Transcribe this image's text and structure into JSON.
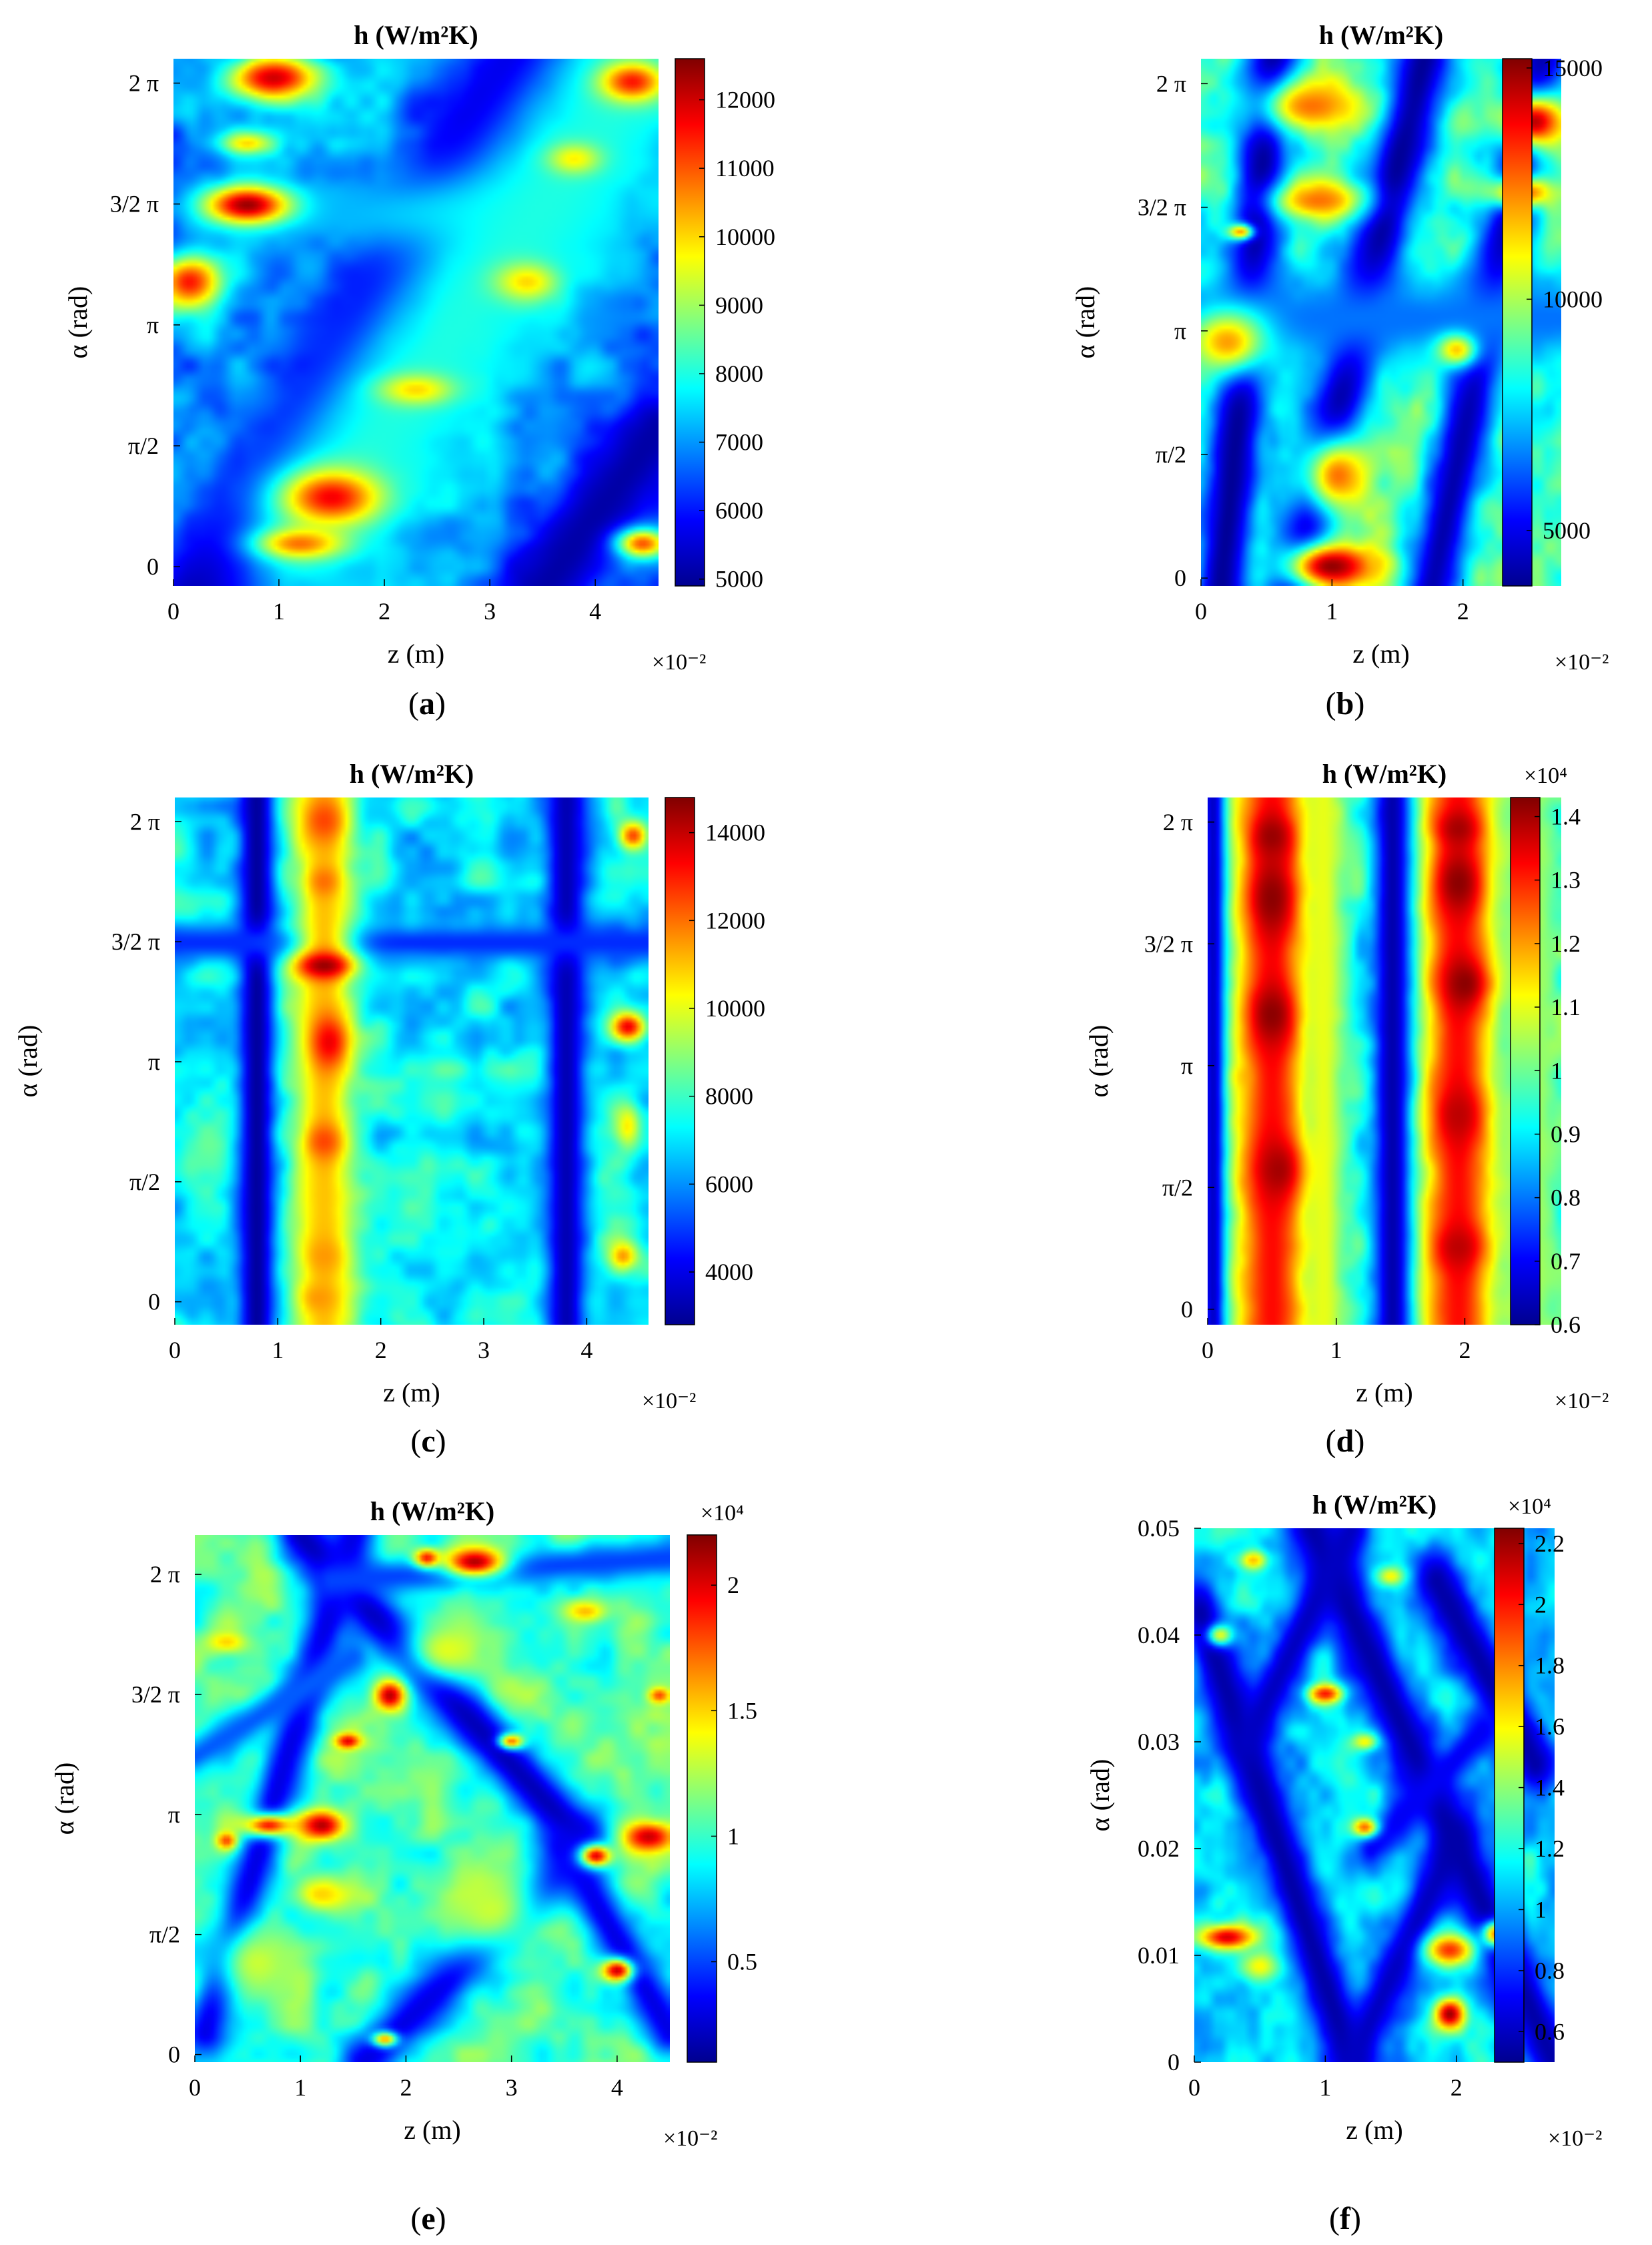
{
  "colorscale": [
    "#00008f",
    "#0000ff",
    "#0080ff",
    "#00ffff",
    "#80ff80",
    "#ffff00",
    "#ff8000",
    "#ff0000",
    "#800000"
  ],
  "chart_data": [
    {
      "type": "heatmap",
      "panel": "a",
      "title": "h (W/m²K)",
      "xlabel": "z (m)",
      "ylabel": "α (rad)",
      "xlim": [
        0,
        4.6
      ],
      "x_exponent": "×10⁻²",
      "ylim": [
        -0.25,
        6.6
      ],
      "xticks": [
        0,
        1,
        2,
        3,
        4
      ],
      "xtick_labels": [
        "0",
        "1",
        "2",
        "3",
        "4"
      ],
      "yticks": [
        0,
        1.5708,
        3.1416,
        4.7124,
        6.2832
      ],
      "ytick_labels": [
        "0",
        "π/2",
        "π",
        "3/2 π",
        "2 π"
      ],
      "clim": [
        4900,
        12600
      ],
      "cticks": [
        5000,
        6000,
        7000,
        8000,
        9000,
        10000,
        11000,
        12000
      ],
      "ctick_labels": [
        "5000",
        "6000",
        "7000",
        "8000",
        "9000",
        "10000",
        "11000",
        "12000"
      ],
      "cexponent": "",
      "background": 6900,
      "bands": [
        {
          "x0": 0.3,
          "y0": -0.3,
          "x1": 3.3,
          "y1": 6.6,
          "w": 0.35,
          "v": 5000
        },
        {
          "x0": 3.5,
          "y0": -0.3,
          "x1": 4.6,
          "y1": 1.8,
          "w": 0.3,
          "v": 5100
        },
        {
          "x0": 0.4,
          "y0": 4.6,
          "x1": 4.0,
          "y1": 4.6,
          "w": 0.25,
          "v": 7200
        },
        {
          "x0": 1.4,
          "y0": 0.6,
          "x1": 4.3,
          "y1": 6.2,
          "w": 0.6,
          "v": 8000
        }
      ],
      "blobs": [
        {
          "x": 0.95,
          "y": 6.35,
          "rx": 0.45,
          "ry": 0.3,
          "v": 12000
        },
        {
          "x": 0.7,
          "y": 4.7,
          "rx": 0.4,
          "ry": 0.25,
          "v": 12400
        },
        {
          "x": 0.15,
          "y": 3.7,
          "rx": 0.3,
          "ry": 0.35,
          "v": 11500
        },
        {
          "x": 0.7,
          "y": 5.5,
          "rx": 0.25,
          "ry": 0.15,
          "v": 10000
        },
        {
          "x": 1.5,
          "y": 0.9,
          "rx": 0.45,
          "ry": 0.35,
          "v": 11700
        },
        {
          "x": 1.2,
          "y": 0.3,
          "rx": 0.4,
          "ry": 0.2,
          "v": 10800
        },
        {
          "x": 2.3,
          "y": 2.3,
          "rx": 0.35,
          "ry": 0.2,
          "v": 10000
        },
        {
          "x": 3.35,
          "y": 3.7,
          "rx": 0.3,
          "ry": 0.25,
          "v": 10000
        },
        {
          "x": 4.35,
          "y": 6.3,
          "rx": 0.3,
          "ry": 0.25,
          "v": 11500
        },
        {
          "x": 3.8,
          "y": 5.3,
          "rx": 0.25,
          "ry": 0.2,
          "v": 9800
        },
        {
          "x": 4.45,
          "y": 0.3,
          "rx": 0.25,
          "ry": 0.2,
          "v": 11000
        }
      ]
    },
    {
      "type": "heatmap",
      "panel": "b",
      "title": "h (W/m²K)",
      "xlabel": "z (m)",
      "ylabel": "α (rad)",
      "xlim": [
        0,
        2.75
      ],
      "x_exponent": "×10⁻²",
      "ylim": [
        -0.1,
        6.6
      ],
      "xticks": [
        0,
        1,
        2
      ],
      "xtick_labels": [
        "0",
        "1",
        "2"
      ],
      "yticks": [
        0,
        1.5708,
        3.1416,
        4.7124,
        6.2832
      ],
      "ytick_labels": [
        "0",
        "π/2",
        "π",
        "3/2 π",
        "2 π"
      ],
      "clim": [
        3800,
        15200
      ],
      "cticks": [
        5000,
        10000,
        15000
      ],
      "ctick_labels": [
        "5000",
        "10000",
        "15000"
      ],
      "cexponent": "",
      "background": 8900,
      "bands": [
        {
          "x0": 0.15,
          "y0": -0.2,
          "x1": 0.55,
          "y1": 6.6,
          "w": 0.15,
          "v": 3900
        },
        {
          "x0": 0.7,
          "y0": -0.2,
          "x1": 1.7,
          "y1": 6.6,
          "w": 0.16,
          "v": 3900
        },
        {
          "x0": 1.75,
          "y0": -0.2,
          "x1": 2.6,
          "y1": 6.6,
          "w": 0.14,
          "v": 4200
        },
        {
          "x0": 0.0,
          "y0": 3.3,
          "x1": 2.75,
          "y1": 3.3,
          "w": 0.18,
          "v": 6500
        }
      ],
      "blobs": [
        {
          "x": 1.0,
          "y": 0.15,
          "rx": 0.35,
          "ry": 0.3,
          "v": 15000
        },
        {
          "x": 1.05,
          "y": 1.3,
          "rx": 0.28,
          "ry": 0.5,
          "v": 12500
        },
        {
          "x": 0.9,
          "y": 4.8,
          "rx": 0.35,
          "ry": 0.25,
          "v": 12500
        },
        {
          "x": 0.85,
          "y": 6.0,
          "rx": 0.4,
          "ry": 0.35,
          "v": 12500
        },
        {
          "x": 2.55,
          "y": 5.8,
          "rx": 0.25,
          "ry": 0.35,
          "v": 14500
        },
        {
          "x": 2.45,
          "y": 4.9,
          "rx": 0.25,
          "ry": 0.2,
          "v": 13000
        },
        {
          "x": 0.2,
          "y": 3.0,
          "rx": 0.3,
          "ry": 0.4,
          "v": 12000
        },
        {
          "x": 1.95,
          "y": 2.9,
          "rx": 0.15,
          "ry": 0.2,
          "v": 11500
        },
        {
          "x": 0.3,
          "y": 4.4,
          "rx": 0.1,
          "ry": 0.1,
          "v": 12000
        }
      ]
    },
    {
      "type": "heatmap",
      "panel": "c",
      "title": "h (W/m²K)",
      "xlabel": "z (m)",
      "ylabel": "α (rad)",
      "xlim": [
        0,
        4.6
      ],
      "x_exponent": "×10⁻²",
      "ylim": [
        -0.3,
        6.6
      ],
      "xticks": [
        0,
        1,
        2,
        3,
        4
      ],
      "xtick_labels": [
        "0",
        "1",
        "2",
        "3",
        "4"
      ],
      "yticks": [
        0,
        1.5708,
        3.1416,
        4.7124,
        6.2832
      ],
      "ytick_labels": [
        "0",
        "π/2",
        "π",
        "3/2 π",
        "2 π"
      ],
      "clim": [
        2800,
        14800
      ],
      "cticks": [
        4000,
        6000,
        8000,
        10000,
        12000,
        14000
      ],
      "ctick_labels": [
        "4000",
        "6000",
        "8000",
        "10000",
        "12000",
        "14000"
      ],
      "cexponent": "",
      "background": 7200,
      "bands": [
        {
          "x0": 0.8,
          "y0": -0.4,
          "x1": 0.8,
          "y1": 6.7,
          "w": 0.13,
          "v": 2900
        },
        {
          "x0": 3.8,
          "y0": -0.4,
          "x1": 3.8,
          "y1": 6.7,
          "w": 0.14,
          "v": 3300
        },
        {
          "x0": 0.0,
          "y0": 4.7,
          "x1": 4.6,
          "y1": 4.7,
          "w": 0.12,
          "v": 4800
        },
        {
          "x0": 1.45,
          "y0": -0.4,
          "x1": 1.45,
          "y1": 6.7,
          "w": 0.22,
          "v": 11000
        }
      ],
      "blobs": [
        {
          "x": 1.45,
          "y": 4.4,
          "rx": 0.28,
          "ry": 0.18,
          "v": 14500
        },
        {
          "x": 1.5,
          "y": 3.4,
          "rx": 0.18,
          "ry": 0.35,
          "v": 13500
        },
        {
          "x": 1.45,
          "y": 6.3,
          "rx": 0.2,
          "ry": 0.3,
          "v": 12500
        },
        {
          "x": 1.45,
          "y": 5.5,
          "rx": 0.15,
          "ry": 0.2,
          "v": 12000
        },
        {
          "x": 1.45,
          "y": 2.1,
          "rx": 0.18,
          "ry": 0.25,
          "v": 12500
        },
        {
          "x": 1.45,
          "y": 0.6,
          "rx": 0.18,
          "ry": 0.25,
          "v": 11500
        },
        {
          "x": 1.4,
          "y": 0.05,
          "rx": 0.18,
          "ry": 0.2,
          "v": 11500
        },
        {
          "x": 4.4,
          "y": 3.6,
          "rx": 0.18,
          "ry": 0.2,
          "v": 13500
        },
        {
          "x": 4.45,
          "y": 6.1,
          "rx": 0.15,
          "ry": 0.2,
          "v": 12500
        },
        {
          "x": 4.35,
          "y": 0.6,
          "rx": 0.15,
          "ry": 0.2,
          "v": 11500
        },
        {
          "x": 4.4,
          "y": 2.3,
          "rx": 0.12,
          "ry": 0.3,
          "v": 10500
        }
      ]
    },
    {
      "type": "heatmap",
      "panel": "d",
      "title": "h (W/m²K)",
      "xlabel": "z (m)",
      "ylabel": "α (rad)",
      "xlim": [
        0,
        2.75
      ],
      "x_exponent": "×10⁻²",
      "ylim": [
        -0.2,
        6.6
      ],
      "xticks": [
        0,
        1,
        2
      ],
      "xtick_labels": [
        "0",
        "1",
        "2"
      ],
      "yticks": [
        0,
        1.5708,
        3.1416,
        4.7124,
        6.2832
      ],
      "ytick_labels": [
        "0",
        "π/2",
        "π",
        "3/2 π",
        "2 π"
      ],
      "clim": [
        0.6,
        1.43
      ],
      "cticks": [
        0.6,
        0.7,
        0.8,
        0.9,
        1,
        1.1,
        1.2,
        1.3,
        1.4
      ],
      "ctick_labels": [
        "0.6",
        "0.7",
        "0.8",
        "0.9",
        "1",
        "1.1",
        "1.2",
        "1.3",
        "1.4"
      ],
      "cexponent": "×10⁴",
      "background": 0.95,
      "bands": [
        {
          "x0": 0.05,
          "y0": -0.3,
          "x1": 0.05,
          "y1": 6.7,
          "w": 0.07,
          "v": 0.6
        },
        {
          "x0": 1.45,
          "y0": -0.3,
          "x1": 1.45,
          "y1": 6.7,
          "w": 0.12,
          "v": 0.6
        },
        {
          "x0": 0.5,
          "y0": -0.3,
          "x1": 0.5,
          "y1": 6.7,
          "w": 0.2,
          "v": 1.32
        },
        {
          "x0": 1.95,
          "y0": -0.3,
          "x1": 1.95,
          "y1": 6.7,
          "w": 0.2,
          "v": 1.32
        },
        {
          "x0": 0.9,
          "y0": -0.3,
          "x1": 0.9,
          "y1": 6.7,
          "w": 0.1,
          "v": 1.1
        },
        {
          "x0": 2.5,
          "y0": -0.3,
          "x1": 2.5,
          "y1": 6.7,
          "w": 0.15,
          "v": 1.05
        }
      ],
      "blobs": [
        {
          "x": 0.5,
          "y": 5.3,
          "rx": 0.18,
          "ry": 0.5,
          "v": 1.42
        },
        {
          "x": 0.5,
          "y": 3.8,
          "rx": 0.18,
          "ry": 0.4,
          "v": 1.42
        },
        {
          "x": 0.55,
          "y": 1.8,
          "rx": 0.18,
          "ry": 0.4,
          "v": 1.4
        },
        {
          "x": 0.5,
          "y": 6.1,
          "rx": 0.16,
          "ry": 0.3,
          "v": 1.41
        },
        {
          "x": 1.95,
          "y": 5.5,
          "rx": 0.18,
          "ry": 0.4,
          "v": 1.42
        },
        {
          "x": 2.0,
          "y": 4.2,
          "rx": 0.18,
          "ry": 0.35,
          "v": 1.42
        },
        {
          "x": 1.95,
          "y": 2.5,
          "rx": 0.18,
          "ry": 0.4,
          "v": 1.38
        },
        {
          "x": 1.95,
          "y": 0.8,
          "rx": 0.18,
          "ry": 0.3,
          "v": 1.38
        },
        {
          "x": 1.95,
          "y": 6.2,
          "rx": 0.16,
          "ry": 0.25,
          "v": 1.4
        }
      ]
    },
    {
      "type": "heatmap",
      "panel": "e",
      "title": "h (W/m²K)",
      "xlabel": "z (m)",
      "ylabel": "α (rad)",
      "xlim": [
        0,
        4.5
      ],
      "x_exponent": "×10⁻²",
      "ylim": [
        -0.1,
        6.8
      ],
      "xticks": [
        0,
        1,
        2,
        3,
        4
      ],
      "xtick_labels": [
        "0",
        "1",
        "2",
        "3",
        "4"
      ],
      "yticks": [
        0,
        1.5708,
        3.1416,
        4.7124,
        6.2832
      ],
      "ytick_labels": [
        "0",
        "π/2",
        "π",
        "3/2 π",
        "2 π"
      ],
      "clim": [
        0.1,
        2.2
      ],
      "cticks": [
        0.5,
        1,
        1.5,
        2
      ],
      "ctick_labels": [
        "0.5",
        "1",
        "1.5",
        "2"
      ],
      "cexponent": "×10⁴",
      "background": 1.05,
      "bands": [
        {
          "x0": 1.0,
          "y0": 6.8,
          "x1": 3.6,
          "y1": 2.9,
          "w": 0.17,
          "v": 0.2
        },
        {
          "x0": 0.1,
          "y0": 0.3,
          "x1": 1.5,
          "y1": 6.8,
          "w": 0.15,
          "v": 0.3
        },
        {
          "x0": 1.6,
          "y0": -0.1,
          "x1": 3.7,
          "y1": 2.7,
          "w": 0.17,
          "v": 0.3
        },
        {
          "x0": 3.5,
          "y0": 2.7,
          "x1": 4.5,
          "y1": 0.3,
          "w": 0.15,
          "v": 0.3
        },
        {
          "x0": 1.3,
          "y0": 6.2,
          "x1": 4.5,
          "y1": 6.5,
          "w": 0.12,
          "v": 0.5
        },
        {
          "x0": 0.0,
          "y0": 3.9,
          "x1": 1.5,
          "y1": 5.2,
          "w": 0.12,
          "v": 0.55
        }
      ],
      "blobs": [
        {
          "x": 2.65,
          "y": 6.45,
          "rx": 0.3,
          "ry": 0.2,
          "v": 2.1
        },
        {
          "x": 2.2,
          "y": 6.5,
          "rx": 0.12,
          "ry": 0.12,
          "v": 1.9
        },
        {
          "x": 1.85,
          "y": 4.7,
          "rx": 0.15,
          "ry": 0.2,
          "v": 2.1
        },
        {
          "x": 1.45,
          "y": 4.1,
          "rx": 0.12,
          "ry": 0.1,
          "v": 2.0
        },
        {
          "x": 1.2,
          "y": 3.0,
          "rx": 0.22,
          "ry": 0.2,
          "v": 2.1
        },
        {
          "x": 0.7,
          "y": 3.0,
          "rx": 0.25,
          "ry": 0.15,
          "v": 1.9
        },
        {
          "x": 0.3,
          "y": 2.8,
          "rx": 0.1,
          "ry": 0.12,
          "v": 1.8
        },
        {
          "x": 4.3,
          "y": 2.85,
          "rx": 0.25,
          "ry": 0.2,
          "v": 2.05
        },
        {
          "x": 3.8,
          "y": 2.6,
          "rx": 0.15,
          "ry": 0.15,
          "v": 2.0
        },
        {
          "x": 4.0,
          "y": 1.1,
          "rx": 0.15,
          "ry": 0.15,
          "v": 2.05
        },
        {
          "x": 3.0,
          "y": 4.1,
          "rx": 0.12,
          "ry": 0.1,
          "v": 1.7
        },
        {
          "x": 4.4,
          "y": 4.7,
          "rx": 0.1,
          "ry": 0.1,
          "v": 1.8
        },
        {
          "x": 1.8,
          "y": 0.2,
          "rx": 0.12,
          "ry": 0.1,
          "v": 1.6
        },
        {
          "x": 2.8,
          "y": 1.9,
          "rx": 0.5,
          "ry": 0.6,
          "v": 1.3
        },
        {
          "x": 2.4,
          "y": 5.3,
          "rx": 0.4,
          "ry": 0.4,
          "v": 1.35
        },
        {
          "x": 0.6,
          "y": 1.2,
          "rx": 0.4,
          "ry": 0.5,
          "v": 1.3
        },
        {
          "x": 1.2,
          "y": 2.1,
          "rx": 0.25,
          "ry": 0.2,
          "v": 1.5
        },
        {
          "x": 3.7,
          "y": 5.8,
          "rx": 0.2,
          "ry": 0.15,
          "v": 1.55
        },
        {
          "x": 0.3,
          "y": 5.4,
          "rx": 0.2,
          "ry": 0.15,
          "v": 1.5
        }
      ]
    },
    {
      "type": "heatmap",
      "panel": "f",
      "title": "h (W/m²K)",
      "xlabel": "z (m)",
      "ylabel": "α (rad)",
      "xlim": [
        0,
        2.75
      ],
      "x_exponent": "×10⁻²",
      "ylim": [
        0,
        0.05
      ],
      "xticks": [
        0,
        1,
        2
      ],
      "xtick_labels": [
        "0",
        "1",
        "2"
      ],
      "yticks": [
        0,
        0.01,
        0.02,
        0.03,
        0.04,
        0.05
      ],
      "ytick_labels": [
        "0",
        "0.01",
        "0.02",
        "0.03",
        "0.04",
        "0.05"
      ],
      "clim": [
        0.5,
        2.25
      ],
      "cticks": [
        0.6,
        0.8,
        1,
        1.2,
        1.4,
        1.6,
        1.8,
        2,
        2.2
      ],
      "ctick_labels": [
        "0.6",
        "0.8",
        "1",
        "1.2",
        "1.4",
        "1.6",
        "1.8",
        "2",
        "2.2"
      ],
      "cexponent": "×10⁴",
      "background": 1.1,
      "bands": [
        {
          "x0": 0.05,
          "y0": 0.042,
          "x1": 1.2,
          "y1": 0.0,
          "w": 0.12,
          "v": 0.55
        },
        {
          "x0": 1.2,
          "y0": 0.0,
          "x1": 2.0,
          "y1": 0.021,
          "w": 0.1,
          "v": 0.6
        },
        {
          "x0": 0.9,
          "y0": 0.05,
          "x1": 2.75,
          "y1": 0.0,
          "w": 0.13,
          "v": 0.55
        },
        {
          "x0": 0.4,
          "y0": 0.03,
          "x1": 1.2,
          "y1": 0.05,
          "w": 0.1,
          "v": 0.6
        },
        {
          "x0": 1.85,
          "y0": 0.045,
          "x1": 2.6,
          "y1": 0.028,
          "w": 0.12,
          "v": 0.55
        },
        {
          "x0": 1.35,
          "y0": 0.02,
          "x1": 2.2,
          "y1": 0.031,
          "w": 0.08,
          "v": 0.7
        }
      ],
      "blobs": [
        {
          "x": 0.25,
          "y": 0.0117,
          "rx": 0.22,
          "ry": 0.0012,
          "v": 2.1
        },
        {
          "x": 1.95,
          "y": 0.0045,
          "rx": 0.12,
          "ry": 0.0015,
          "v": 2.2
        },
        {
          "x": 1.95,
          "y": 0.0105,
          "rx": 0.18,
          "ry": 0.0015,
          "v": 1.95
        },
        {
          "x": 2.3,
          "y": 0.012,
          "rx": 0.1,
          "ry": 0.0012,
          "v": 1.8
        },
        {
          "x": 1.0,
          "y": 0.0345,
          "rx": 0.13,
          "ry": 0.0009,
          "v": 2.0
        },
        {
          "x": 1.3,
          "y": 0.022,
          "rx": 0.1,
          "ry": 0.0009,
          "v": 1.85
        },
        {
          "x": 0.45,
          "y": 0.047,
          "rx": 0.12,
          "ry": 0.001,
          "v": 1.7
        },
        {
          "x": 1.5,
          "y": 0.0455,
          "rx": 0.1,
          "ry": 0.0009,
          "v": 1.6
        },
        {
          "x": 0.5,
          "y": 0.009,
          "rx": 0.15,
          "ry": 0.0015,
          "v": 1.6
        },
        {
          "x": 1.3,
          "y": 0.03,
          "rx": 0.1,
          "ry": 0.0008,
          "v": 1.6
        },
        {
          "x": 0.2,
          "y": 0.04,
          "rx": 0.1,
          "ry": 0.001,
          "v": 1.55
        }
      ]
    }
  ],
  "captions": [
    {
      "prefix": "(",
      "letter": "a",
      "suffix": ")"
    },
    {
      "prefix": "(",
      "letter": "b",
      "suffix": ")"
    },
    {
      "prefix": "(",
      "letter": "c",
      "suffix": ")"
    },
    {
      "prefix": "(",
      "letter": "d",
      "suffix": ")"
    },
    {
      "prefix": "(",
      "letter": "e",
      "suffix": ")"
    },
    {
      "prefix": "(",
      "letter": "f",
      "suffix": ")"
    }
  ]
}
